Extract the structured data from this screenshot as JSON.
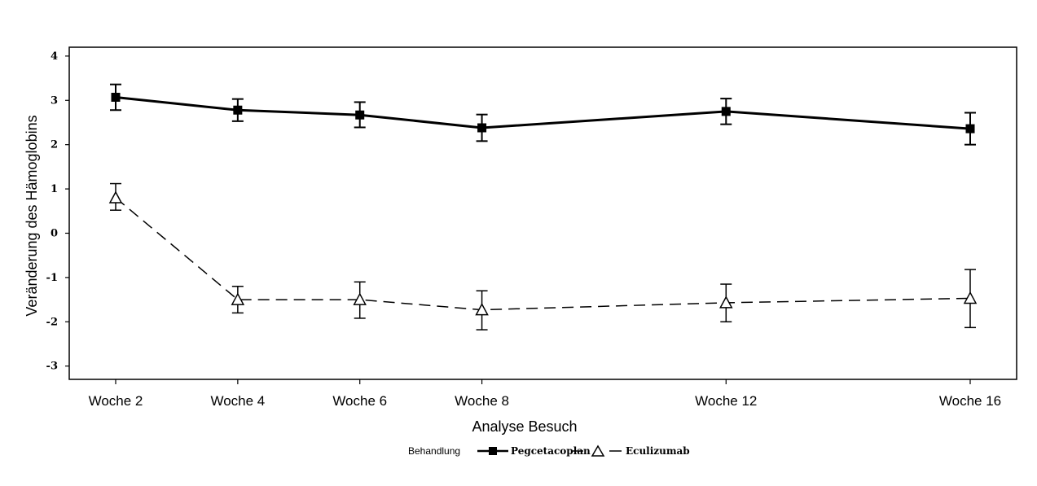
{
  "chart_data": {
    "type": "line",
    "title": "",
    "xlabel": "Analyse Besuch",
    "ylabel": "Veränderung des Hämoglobins",
    "ylim": [
      -3.3,
      4.2
    ],
    "yticks": [
      "4",
      "3",
      "2",
      "1",
      "0",
      "-1",
      "-2",
      "-3"
    ],
    "x_weeks": [
      2,
      4,
      6,
      8,
      12,
      16
    ],
    "categories": [
      "Woche 2",
      "Woche 4",
      "Woche 6",
      "Woche 8",
      "Woche 12",
      "Woche 16"
    ],
    "grid": false,
    "legend": {
      "title": "Behandlung",
      "placement": "bottom-center"
    },
    "series": [
      {
        "name": "Pegcetacoplan",
        "values": [
          3.07,
          2.78,
          2.67,
          2.38,
          2.75,
          2.36
        ],
        "lower": [
          2.78,
          2.53,
          2.39,
          2.08,
          2.46,
          2.0
        ],
        "upper": [
          3.36,
          3.03,
          2.96,
          2.68,
          3.04,
          2.72
        ],
        "marker": "filled-square",
        "line": "solid"
      },
      {
        "name": "Eculizumab",
        "values": [
          0.8,
          -1.5,
          -1.5,
          -1.73,
          -1.57,
          -1.47
        ],
        "lower": [
          0.52,
          -1.8,
          -1.92,
          -2.18,
          -2.0,
          -2.13
        ],
        "upper": [
          1.12,
          -1.2,
          -1.1,
          -1.3,
          -1.15,
          -0.82
        ],
        "marker": "open-triangle",
        "line": "dashed"
      }
    ]
  }
}
